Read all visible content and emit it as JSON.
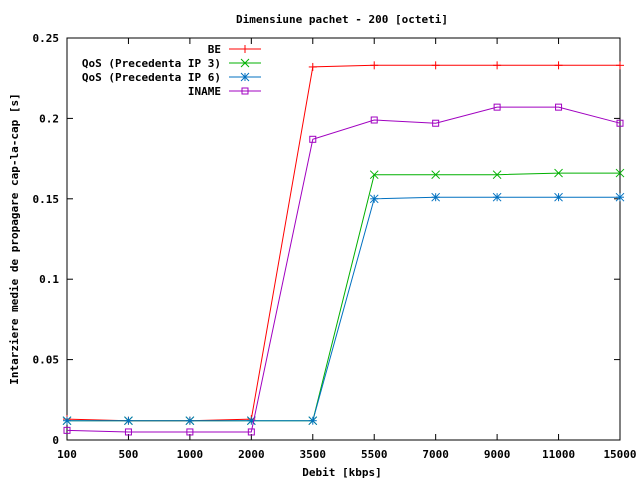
{
  "chart_data": {
    "type": "line",
    "title": "Dimensiune pachet - 200 [octeti]",
    "xlabel": "Debit [kbps]",
    "ylabel": "Intarziere medie de propagare cap-la-cap [s]",
    "categories": [
      "100",
      "500",
      "1000",
      "2000",
      "3500",
      "5500",
      "7000",
      "9000",
      "11000",
      "15000"
    ],
    "ylim": [
      0,
      0.25
    ],
    "yticks": [
      "0",
      "0.05",
      "0.1",
      "0.15",
      "0.2",
      "0.25"
    ],
    "ytick_values": [
      0,
      0.05,
      0.1,
      0.15,
      0.2,
      0.25
    ],
    "grid": false,
    "legend_position": "top-left",
    "series": [
      {
        "name": "BE",
        "color": "#ff0000",
        "marker": "plus",
        "values": [
          0.013,
          0.012,
          0.012,
          0.013,
          0.232,
          0.233,
          0.233,
          0.233,
          0.233,
          0.233
        ]
      },
      {
        "name": "QoS (Precedenta IP 3)",
        "color": "#00b000",
        "marker": "cross",
        "values": [
          0.012,
          0.012,
          0.012,
          0.012,
          0.012,
          0.165,
          0.165,
          0.165,
          0.166,
          0.166
        ]
      },
      {
        "name": "QoS (Precedenta IP 6)",
        "color": "#0070c0",
        "marker": "star",
        "values": [
          0.012,
          0.012,
          0.012,
          0.012,
          0.012,
          0.15,
          0.151,
          0.151,
          0.151,
          0.151
        ]
      },
      {
        "name": "INAME",
        "color": "#a000c0",
        "marker": "square",
        "values": [
          0.006,
          0.005,
          0.005,
          0.005,
          0.187,
          0.199,
          0.197,
          0.207,
          0.207,
          0.197
        ]
      }
    ]
  }
}
